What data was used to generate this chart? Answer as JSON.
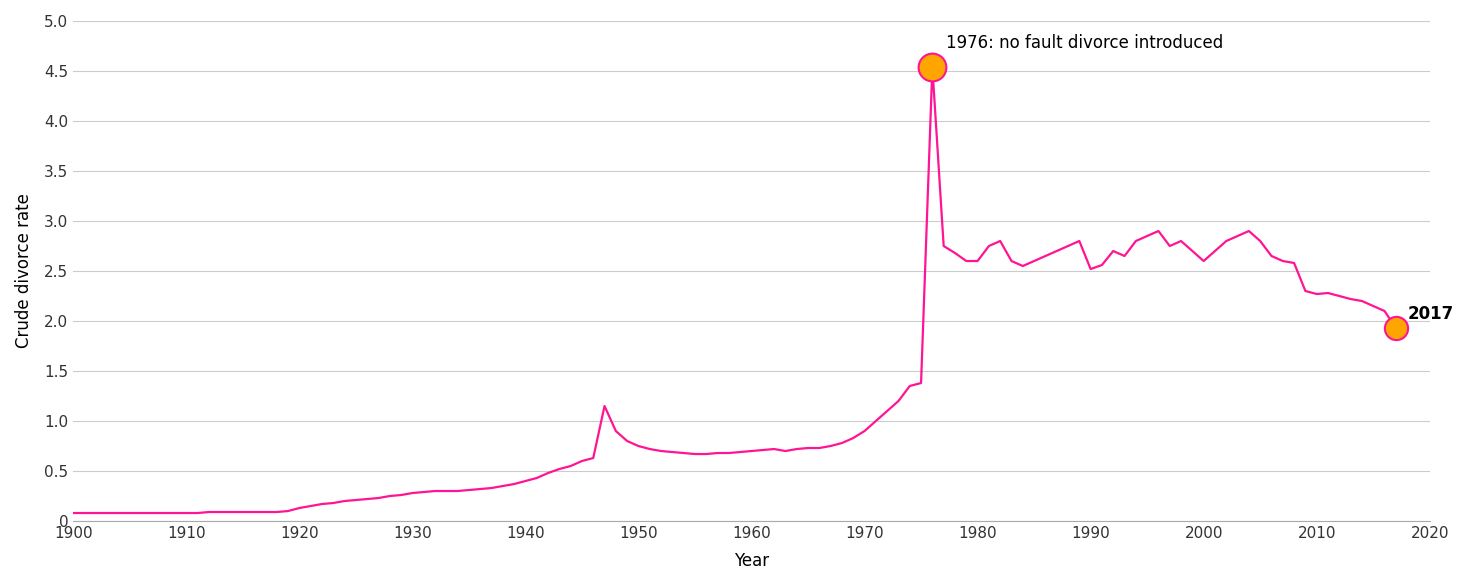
{
  "years": [
    1900,
    1901,
    1902,
    1903,
    1904,
    1905,
    1906,
    1907,
    1908,
    1909,
    1910,
    1911,
    1912,
    1913,
    1914,
    1915,
    1916,
    1917,
    1918,
    1919,
    1920,
    1921,
    1922,
    1923,
    1924,
    1925,
    1926,
    1927,
    1928,
    1929,
    1930,
    1931,
    1932,
    1933,
    1934,
    1935,
    1936,
    1937,
    1938,
    1939,
    1940,
    1941,
    1942,
    1943,
    1944,
    1945,
    1946,
    1947,
    1948,
    1949,
    1950,
    1951,
    1952,
    1953,
    1954,
    1955,
    1956,
    1957,
    1958,
    1959,
    1960,
    1961,
    1962,
    1963,
    1964,
    1965,
    1966,
    1967,
    1968,
    1969,
    1970,
    1971,
    1972,
    1973,
    1974,
    1975,
    1976,
    1977,
    1978,
    1979,
    1980,
    1981,
    1982,
    1983,
    1984,
    1985,
    1986,
    1987,
    1988,
    1989,
    1990,
    1991,
    1992,
    1993,
    1994,
    1995,
    1996,
    1997,
    1998,
    1999,
    2000,
    2001,
    2002,
    2003,
    2004,
    2005,
    2006,
    2007,
    2008,
    2009,
    2010,
    2011,
    2012,
    2013,
    2014,
    2015,
    2016,
    2017
  ],
  "rates": [
    0.08,
    0.08,
    0.08,
    0.08,
    0.08,
    0.08,
    0.08,
    0.08,
    0.08,
    0.08,
    0.08,
    0.08,
    0.09,
    0.09,
    0.09,
    0.09,
    0.09,
    0.09,
    0.09,
    0.1,
    0.13,
    0.15,
    0.17,
    0.18,
    0.2,
    0.21,
    0.22,
    0.23,
    0.25,
    0.26,
    0.28,
    0.29,
    0.3,
    0.3,
    0.3,
    0.31,
    0.32,
    0.33,
    0.35,
    0.37,
    0.4,
    0.43,
    0.48,
    0.52,
    0.55,
    0.6,
    0.63,
    1.15,
    0.9,
    0.8,
    0.75,
    0.72,
    0.7,
    0.69,
    0.68,
    0.67,
    0.67,
    0.68,
    0.68,
    0.69,
    0.7,
    0.71,
    0.72,
    0.7,
    0.72,
    0.73,
    0.73,
    0.75,
    0.78,
    0.83,
    0.9,
    1.0,
    1.1,
    1.2,
    1.35,
    1.38,
    4.54,
    2.75,
    2.68,
    2.6,
    2.6,
    2.75,
    2.8,
    2.6,
    2.55,
    2.6,
    2.65,
    2.7,
    2.75,
    2.8,
    2.52,
    2.56,
    2.7,
    2.65,
    2.8,
    2.85,
    2.9,
    2.75,
    2.8,
    2.7,
    2.6,
    2.7,
    2.8,
    2.85,
    2.9,
    2.8,
    2.65,
    2.6,
    2.58,
    2.3,
    2.27,
    2.28,
    2.25,
    2.22,
    2.2,
    2.15,
    2.1,
    1.93
  ],
  "annotation_1976_year": 1976,
  "annotation_1976_value": 4.54,
  "annotation_1976_bold": "1976:",
  "annotation_1976_normal": " no fault divorce introduced",
  "annotation_2017_year": 2017,
  "annotation_2017_value": 1.93,
  "annotation_2017_bold": "2017",
  "line_color": "#FF1493",
  "marker_color": "#FFA500",
  "marker_edge_color": "#FF1493",
  "background_color": "#ffffff",
  "grid_color": "#cccccc",
  "ylabel": "Crude divorce rate",
  "xlabel": "Year",
  "ylim_min": 0,
  "ylim_max": 5.0,
  "xlim_min": 1900,
  "xlim_max": 2020,
  "ytick_values": [
    0,
    0.5,
    1.0,
    1.5,
    2.0,
    2.5,
    3.0,
    3.5,
    4.0,
    4.5,
    5.0
  ],
  "ytick_labels": [
    "0",
    "0.5",
    "1.0",
    "1.5",
    "2.0",
    "2.5",
    "3.0",
    "3.5",
    "4.0",
    "4.5",
    "5.0"
  ],
  "xticks": [
    1900,
    1910,
    1920,
    1930,
    1940,
    1950,
    1960,
    1970,
    1980,
    1990,
    2000,
    2010,
    2020
  ],
  "annotation_fontsize": 12,
  "axis_label_fontsize": 12,
  "tick_fontsize": 11
}
